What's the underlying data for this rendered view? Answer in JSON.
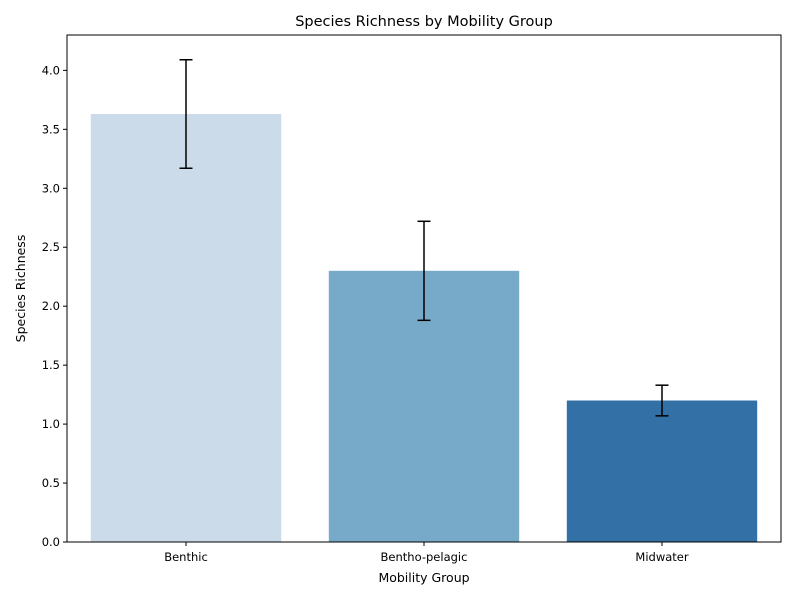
{
  "chart_data": {
    "type": "bar",
    "title": "Species Richness by Mobility Group",
    "xlabel": "Mobility Group",
    "ylabel": "Species Richness",
    "categories": [
      "Benthic",
      "Bentho-pelagic",
      "Midwater"
    ],
    "values": [
      3.63,
      2.3,
      1.2
    ],
    "error_low": [
      3.17,
      1.88,
      1.07
    ],
    "error_high": [
      4.09,
      2.72,
      1.33
    ],
    "colors": [
      "#cbdbea",
      "#77a9c8",
      "#3370a5"
    ],
    "ylim": [
      0,
      4.3
    ],
    "yticks": [
      0.0,
      0.5,
      1.0,
      1.5,
      2.0,
      2.5,
      3.0,
      3.5,
      4.0
    ],
    "ytick_labels": [
      "0.0",
      "0.5",
      "1.0",
      "1.5",
      "2.0",
      "2.5",
      "3.0",
      "3.5",
      "4.0"
    ],
    "grid": false,
    "legend": "none"
  }
}
